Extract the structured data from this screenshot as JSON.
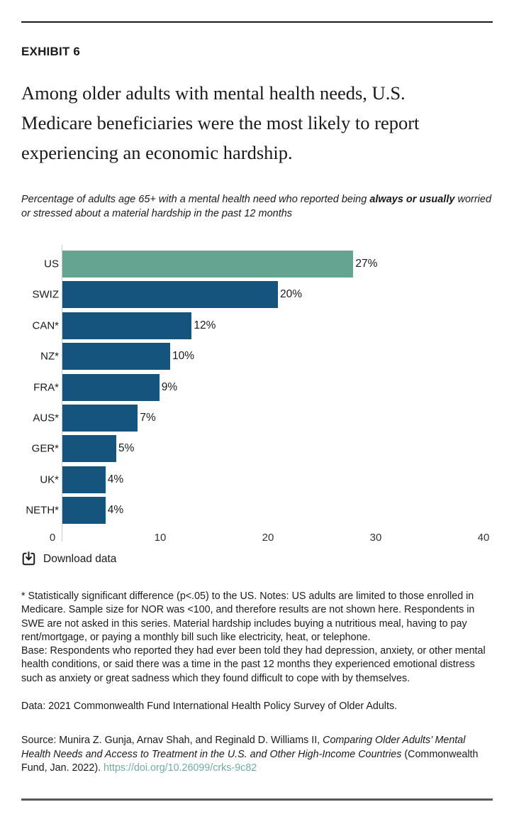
{
  "exhibit_label": "EXHIBIT 6",
  "title": "Among older adults with mental health needs, U.S. Medicare beneficiaries were the most likely to report experiencing an economic hardship.",
  "subtitle": {
    "pre": "Percentage of adults age 65+ with a mental health need who reported being ",
    "bold": "always or usually",
    "post": " worried or stressed about a material hardship in the past 12 months"
  },
  "chart_data": {
    "type": "bar",
    "orientation": "horizontal",
    "categories": [
      "US",
      "SWIZ",
      "CAN*",
      "NZ*",
      "FRA*",
      "AUS*",
      "GER*",
      "UK*",
      "NETH*"
    ],
    "values": [
      27,
      20,
      12,
      10,
      9,
      7,
      5,
      4,
      4
    ],
    "value_labels": [
      "27%",
      "20%",
      "12%",
      "10%",
      "9%",
      "7%",
      "5%",
      "4%",
      "4%"
    ],
    "xlim": [
      0,
      40
    ],
    "x_ticks": [
      0,
      10,
      20,
      30,
      40
    ],
    "grid": false,
    "legend": false,
    "highlight_category": "US",
    "highlight_color": "#66a492",
    "bar_color": "#15547d"
  },
  "download": {
    "label": "Download data"
  },
  "footnote": {
    "line1": "* Statistically significant difference (p<.05) to the US. Notes: US adults are limited to those enrolled in Medicare. Sample size for NOR was <100, and therefore results are not shown here. Respondents in SWE are not asked in this series. Material hardship includes buying a nutritious meal, having to pay rent/mortgage, or paying a monthly bill such like electricity, heat, or telephone.",
    "line2": "Base: Respondents who reported they had ever been told they had depression, anxiety, or other mental health conditions, or said there was a time in the past 12 months they experienced emotional distress such as anxiety or great sadness which they found difficult to cope with by themselves."
  },
  "data_line": "Data: 2021 Commonwealth Fund International Health Policy Survey of Older Adults.",
  "source": {
    "pre": "Source: Munira Z. Gunja, Arnav Shah, and Reginald D. Williams II, ",
    "italic": "Comparing Older Adults’ Mental Health Needs and Access to Treatment in the U.S. and Other High-Income Countries",
    "post": " (Commonwealth Fund, Jan. 2022). ",
    "link": "https://doi.org/10.26099/crks-9c82",
    "link_color": "#6fae9d"
  }
}
